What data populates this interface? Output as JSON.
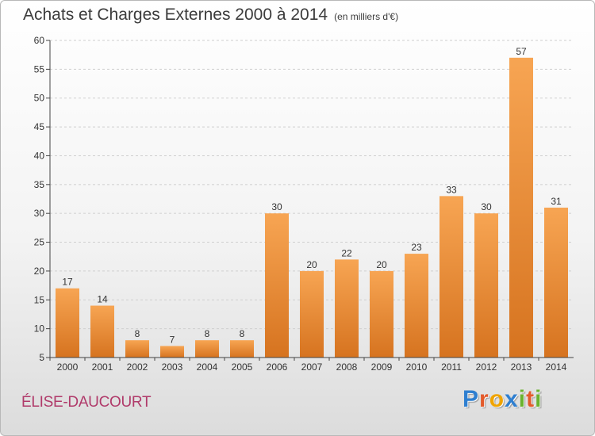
{
  "header": {
    "title": "Achats et Charges Externes 2000 à 2014",
    "unit": "(en milliers d'€)"
  },
  "footer": {
    "location": "ÉLISE-DAUCOURT",
    "logo_letters": [
      {
        "char": "P",
        "color": "#2f7fd0"
      },
      {
        "char": "r",
        "color": "#e35a2b"
      },
      {
        "char": "o",
        "color": "#f0a400"
      },
      {
        "char": "x",
        "color": "#2f7fd0"
      },
      {
        "char": "i",
        "color": "#6ab22e"
      },
      {
        "char": "t",
        "color": "#e35a2b"
      },
      {
        "char": "i",
        "color": "#6ab22e"
      }
    ]
  },
  "colors": {
    "bar_light": "#f7a553",
    "bar_dark": "#d6731f",
    "axis": "#444444",
    "grid": "#cfcfcf"
  },
  "chart_data": {
    "type": "bar",
    "title": "Achats et Charges Externes 2000 à 2014",
    "unit": "(en milliers d'€)",
    "categories": [
      "2000",
      "2001",
      "2002",
      "2003",
      "2004",
      "2005",
      "2006",
      "2007",
      "2008",
      "2009",
      "2010",
      "2011",
      "2012",
      "2013",
      "2014"
    ],
    "values": [
      17,
      14,
      8,
      7,
      8,
      8,
      30,
      20,
      22,
      20,
      23,
      33,
      30,
      57,
      31
    ],
    "ylim": [
      5,
      60
    ],
    "yticks": [
      5,
      10,
      15,
      20,
      25,
      30,
      35,
      40,
      45,
      50,
      55,
      60
    ],
    "grid": "horizontal dashed",
    "legend": "none"
  }
}
